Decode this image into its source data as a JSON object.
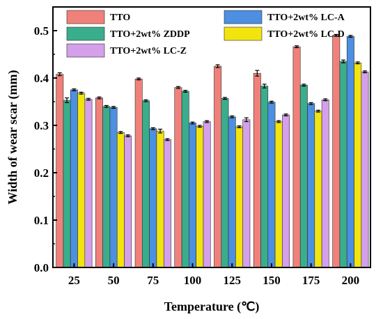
{
  "chart_data": {
    "type": "bar",
    "xlabel": "Temperature (℃)",
    "ylabel": "Width of wear scar (mm)",
    "categories": [
      "25",
      "50",
      "75",
      "100",
      "125",
      "150",
      "175",
      "200"
    ],
    "ylim": [
      0,
      0.55
    ],
    "yticks": [
      "0.0",
      "0.1",
      "0.2",
      "0.3",
      "0.4",
      "0.5"
    ],
    "grid": false,
    "legend_position": "top",
    "series": [
      {
        "name": "TTO",
        "color": "#f0817a",
        "values": [
          0.408,
          0.358,
          0.398,
          0.38,
          0.425,
          0.41,
          0.466,
          0.49
        ],
        "errors": [
          0.003,
          0.002,
          0.002,
          0.002,
          0.003,
          0.006,
          0.002,
          0.002
        ]
      },
      {
        "name": "TTO+2wt% ZDDP",
        "color": "#3aad8c",
        "values": [
          0.353,
          0.34,
          0.352,
          0.372,
          0.357,
          0.383,
          0.385,
          0.435
        ],
        "errors": [
          0.005,
          0.002,
          0.002,
          0.002,
          0.002,
          0.004,
          0.002,
          0.003
        ]
      },
      {
        "name": "TTO+2wt% LC-Z",
        "color": "#d4a0ea",
        "values": [
          0.355,
          0.278,
          0.27,
          0.308,
          0.312,
          0.322,
          0.354,
          0.413
        ],
        "errors": [
          0.002,
          0.002,
          0.002,
          0.002,
          0.004,
          0.002,
          0.002,
          0.002
        ]
      },
      {
        "name": "TTO+2wt% LC-A",
        "color": "#4d8fe0",
        "values": [
          0.375,
          0.338,
          0.293,
          0.305,
          0.318,
          0.349,
          0.346,
          0.488
        ],
        "errors": [
          0.002,
          0.002,
          0.002,
          0.002,
          0.002,
          0.002,
          0.002,
          0.002
        ]
      },
      {
        "name": "TTO+2wt% LC-D",
        "color": "#f2e40f",
        "values": [
          0.368,
          0.285,
          0.288,
          0.298,
          0.297,
          0.308,
          0.33,
          0.432
        ],
        "errors": [
          0.002,
          0.002,
          0.004,
          0.002,
          0.002,
          0.002,
          0.002,
          0.002
        ]
      }
    ],
    "bar_order": [
      "TTO",
      "TTO+2wt% ZDDP",
      "TTO+2wt% LC-A",
      "TTO+2wt% LC-D",
      "TTO+2wt% LC-Z"
    ]
  }
}
